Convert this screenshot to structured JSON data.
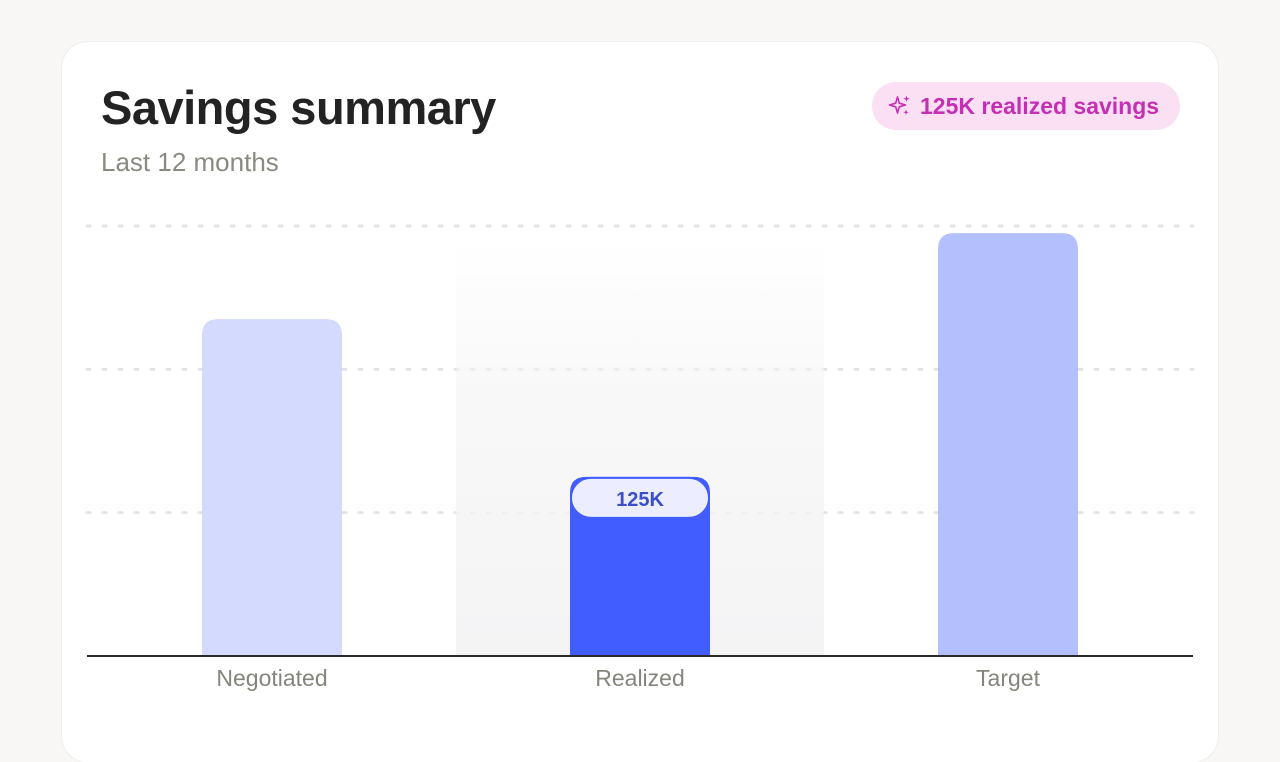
{
  "header": {
    "title": "Savings summary",
    "subtitle": "Last 12 months"
  },
  "badge": {
    "icon": "sparkle-icon",
    "text": "125K realized savings",
    "color": "#c52fb4",
    "background": "#fbe0f4"
  },
  "chart_data": {
    "type": "bar",
    "categories": [
      "Negotiated",
      "Realized",
      "Target"
    ],
    "values": [
      235,
      125,
      295
    ],
    "data_labels": [
      "",
      "125K",
      ""
    ],
    "highlighted_category": "Realized",
    "bar_colors": [
      "#d3dafe",
      "#415dff",
      "#b4c0fe"
    ],
    "ylim": [
      0,
      300
    ],
    "grid": true,
    "legend": "none"
  }
}
